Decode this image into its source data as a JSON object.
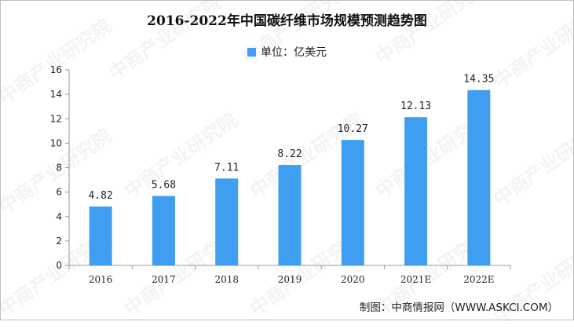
{
  "chart_data": {
    "type": "bar",
    "title": "2016-2022年中国碳纤维市场规模预测趋势图",
    "legend": {
      "label": "单位：亿美元",
      "position": "top-center"
    },
    "categories": [
      "2016",
      "2017",
      "2018",
      "2019",
      "2020",
      "2021E",
      "2022E"
    ],
    "series": [
      {
        "name": "单位：亿美元",
        "values": [
          4.82,
          5.68,
          7.11,
          8.22,
          10.27,
          12.13,
          14.35
        ],
        "color": "#3f9ef0"
      }
    ],
    "data_labels": [
      "4.82",
      "5.68",
      "7.11",
      "8.22",
      "10.27",
      "12.13",
      "14.35"
    ],
    "ylim": [
      0,
      16
    ],
    "yticks": [
      "0",
      "2",
      "4",
      "6",
      "8",
      "10",
      "12",
      "14",
      "16"
    ],
    "xlabel": "",
    "ylabel": "",
    "grid": false
  },
  "source": "制图：中商情报网（WWW.ASKCI.COM）",
  "watermark": "中商产业研究院"
}
